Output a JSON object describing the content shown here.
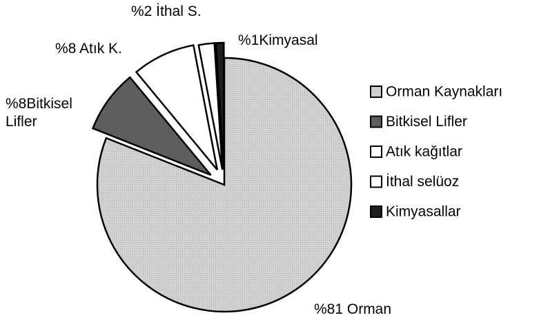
{
  "chart_data": {
    "type": "pie",
    "categories": [
      "Orman Kaynakları",
      "Bitkisel Lifler",
      "Atık kağıtlar",
      "İthal selüoz",
      "Kimyasallar"
    ],
    "values": [
      81,
      8,
      8,
      2,
      1
    ],
    "value_labels": [
      "%81 Orman",
      "%8Bitkisel Lifler",
      "%8 Atık K.",
      "%2 İthal S.",
      "%1Kimyasal"
    ],
    "colors": [
      "#d2d2d2",
      "#5e5e5e",
      "#ffffff",
      "#ffffff",
      "#1e1e1e"
    ],
    "legend": "right"
  }
}
